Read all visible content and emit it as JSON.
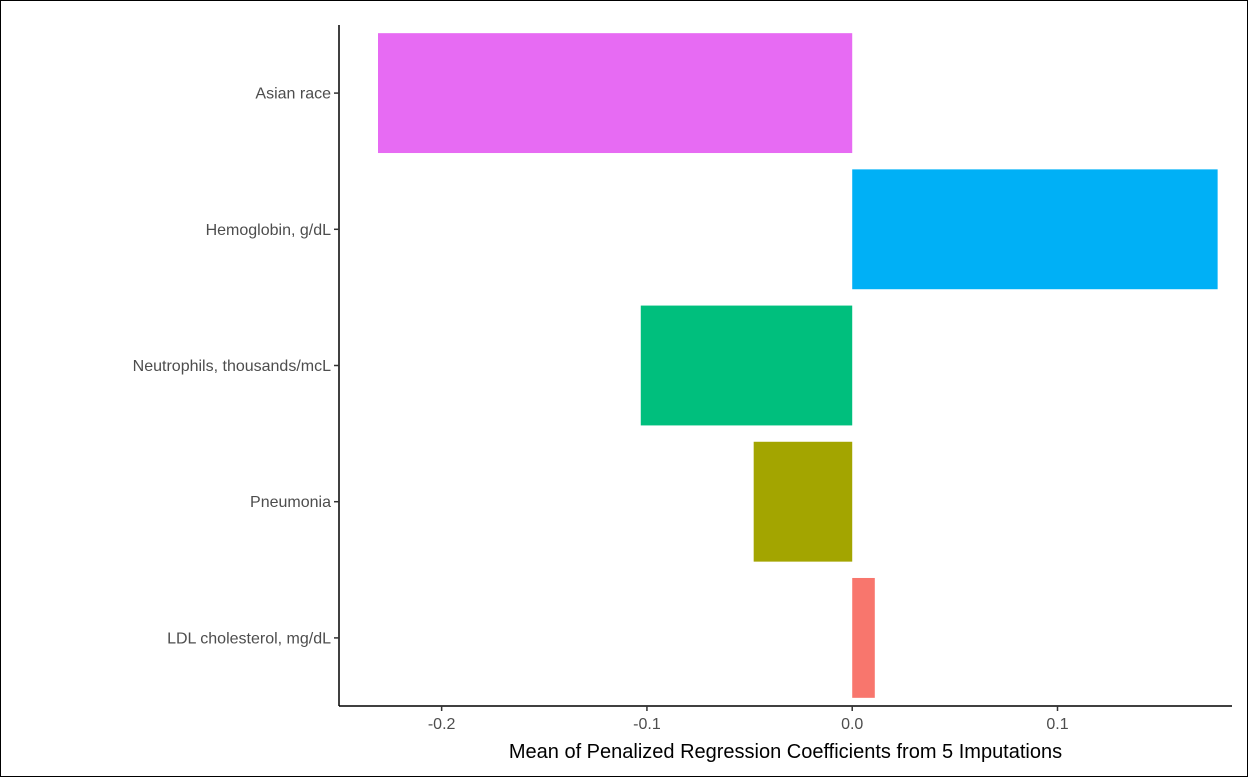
{
  "chart_data": {
    "type": "bar",
    "orientation": "horizontal",
    "title": "",
    "xlabel": "Mean of Penalized Regression Coefficients from 5 Imputations",
    "ylabel": "",
    "xlim": [
      -0.25,
      0.185
    ],
    "x_ticks": [
      -0.2,
      -0.1,
      0.0,
      0.1
    ],
    "x_tick_labels": [
      "-0.2",
      "-0.1",
      "0.0",
      "0.1"
    ],
    "grid": false,
    "legend": "none",
    "categories": [
      "Asian race",
      "Hemoglobin, g/dL",
      "Neutrophils, thousands/mcL",
      "Pneumonia",
      "LDL cholesterol, mg/dL"
    ],
    "values": [
      -0.231,
      0.178,
      -0.103,
      -0.048,
      0.011
    ],
    "colors": [
      "#E76BF3",
      "#00B0F6",
      "#00BF7D",
      "#A3A500",
      "#F8766D"
    ]
  }
}
